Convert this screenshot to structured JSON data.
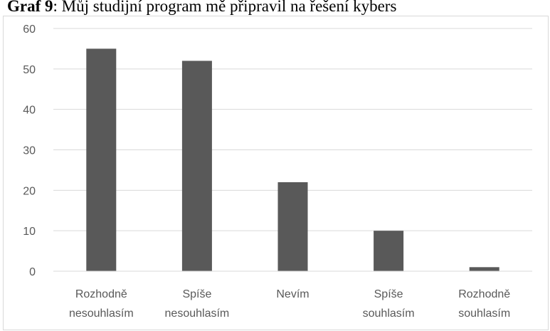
{
  "chart_data": {
    "type": "bar",
    "title_label": "Graf 9",
    "title": ": Můj studijní program mě připravil na řešení kybers",
    "categories": [
      [
        "Rozhodně",
        "nesouhlasím"
      ],
      [
        "Spíše",
        "nesouhlasím"
      ],
      [
        "Nevím"
      ],
      [
        "Spíše",
        "souhlasím"
      ],
      [
        "Rozhodně",
        "souhlasím"
      ]
    ],
    "values": [
      55,
      52,
      22,
      10,
      1
    ],
    "color": "#595959",
    "ylim": [
      0,
      60
    ],
    "yticks": [
      0,
      10,
      20,
      30,
      40,
      50,
      60
    ],
    "grid": true
  }
}
